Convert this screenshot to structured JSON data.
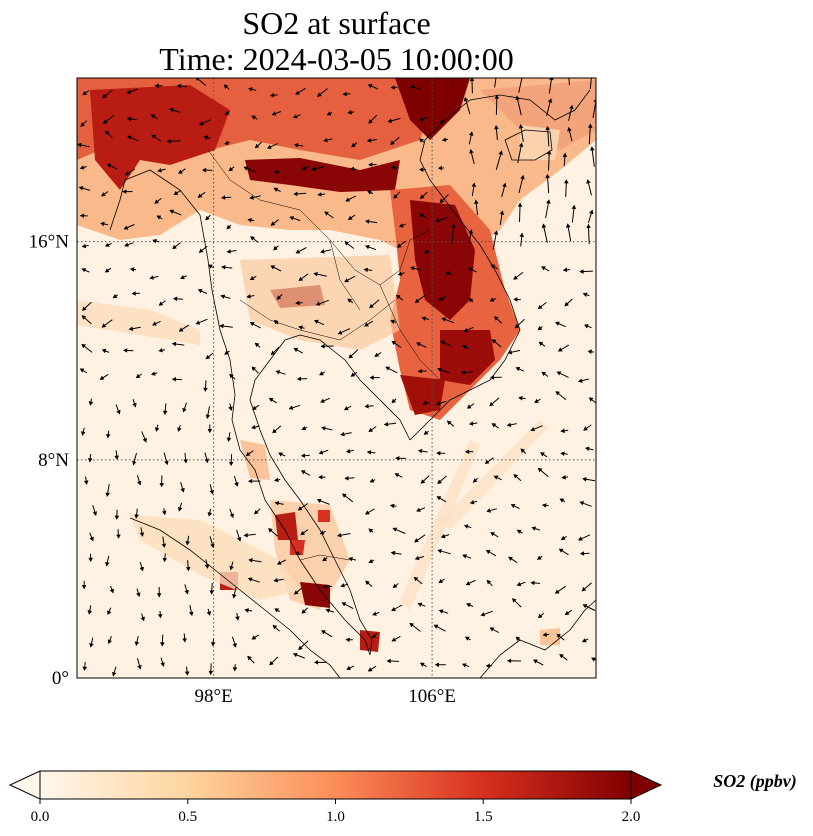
{
  "title": "SO2 at surface",
  "subtitle": "Time: 2024-03-05 10:00:00",
  "map": {
    "extent": {
      "lon_min": 93,
      "lon_max": 112,
      "lat_min": 0,
      "lat_max": 22
    },
    "lat_ticks": [
      {
        "value": 16,
        "label": "16°N"
      },
      {
        "value": 8,
        "label": "8°N"
      },
      {
        "value": 0,
        "label": "0°"
      }
    ],
    "lon_ticks": [
      {
        "value": 98,
        "label": "98°E"
      },
      {
        "value": 106,
        "label": "106°E"
      }
    ],
    "gridlines": "dotted",
    "field_variable": "SO2",
    "vectors": "wind arrows"
  },
  "colorbar": {
    "label": "SO2 (ppbv)",
    "min": 0.0,
    "max": 2.0,
    "ticks": [
      "0.0",
      "0.5",
      "1.0",
      "1.5",
      "2.0"
    ],
    "colormap": "OrRd",
    "colors": [
      "#fff7ec",
      "#fdd49e",
      "#fc8d59",
      "#d7301f",
      "#7f0000"
    ],
    "extend": "both"
  }
}
